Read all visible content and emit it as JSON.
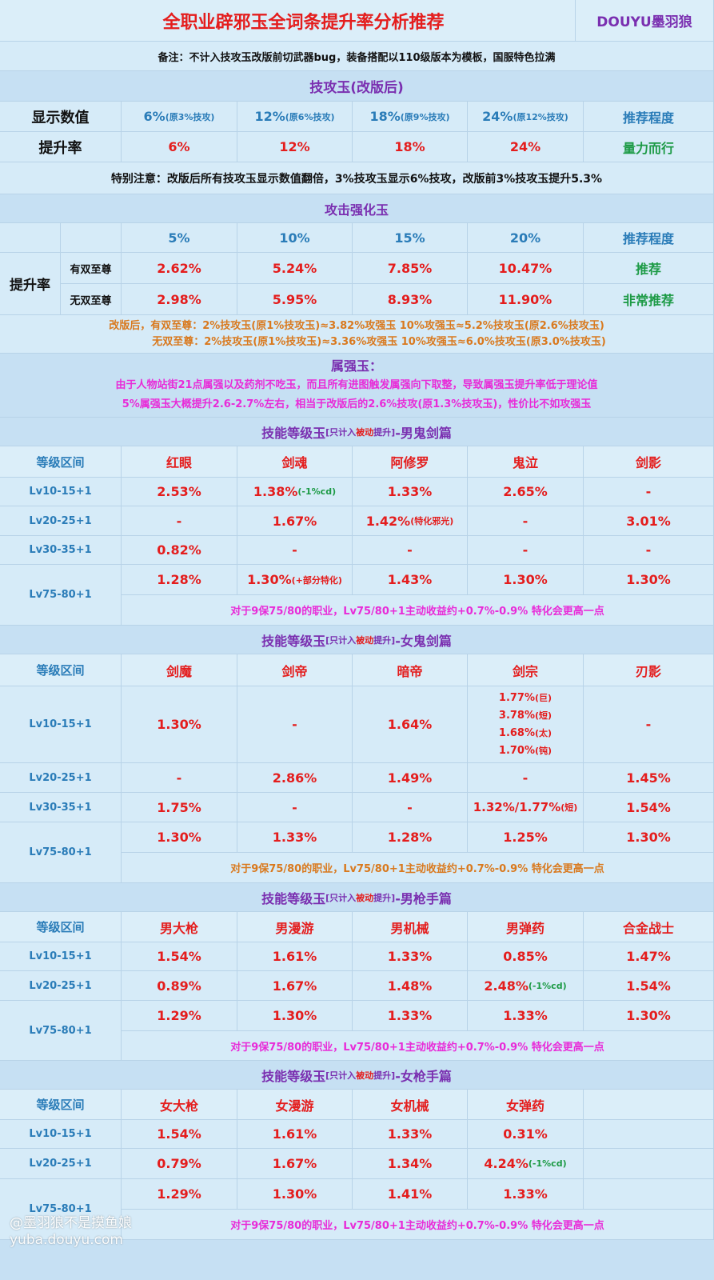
{
  "title": "全职业辟邪玉全词条提升率分析推荐",
  "brand": "DOUYU墨羽狼",
  "note": "备注：不计入技攻玉改版前切武器bug，装备搭配以110级版本为模板，国服特色拉满",
  "skill_atk": {
    "section": "技攻玉(改版后)",
    "display_label": "显示数值",
    "display": [
      "6%",
      "(原3%技攻)",
      "12%",
      "(原6%技攻)",
      "18%",
      "(原9%技攻)",
      "24%",
      "(原12%技攻)"
    ],
    "rec_header": "推荐程度",
    "rate_label": "提升率",
    "rates": [
      "6%",
      "12%",
      "18%",
      "24%"
    ],
    "rec": "量力而行",
    "notice": "特别注意：改版后所有技攻玉显示数值翻倍，3%技攻玉显示6%技攻，改版前3%技攻玉提升5.3%"
  },
  "atk_enh": {
    "section": "攻击强化玉",
    "cols": [
      "5%",
      "10%",
      "15%",
      "20%"
    ],
    "rec_header": "推荐程度",
    "rate_label": "提升率",
    "rows": [
      {
        "label": "有双至尊",
        "values": [
          "2.62%",
          "5.24%",
          "7.85%",
          "10.47%"
        ],
        "rec": "推荐"
      },
      {
        "label": "无双至尊",
        "values": [
          "2.98%",
          "5.95%",
          "8.93%",
          "11.90%"
        ],
        "rec": "非常推荐"
      }
    ],
    "note1": "改版后，有双至尊：2%技攻玉(原1%技攻玉)≈3.82%攻强玉      10%攻强玉≈5.2%技攻玉(原2.6%技攻玉)",
    "note2": "无双至尊：2%技攻玉(原1%技攻玉)≈3.36%攻强玉      10%攻强玉≈6.0%技攻玉(原3.0%技攻玉)"
  },
  "elem": {
    "section": "属强玉：",
    "line1": "由于人物站街21点属强以及药剂不吃玉，而且所有进图触发属强向下取整，导致属强玉提升率低于理论值",
    "line2": "5%属强玉大概提升2.6-2.7%左右，相当于改版后的2.6%技攻(原1.3%技攻玉)，性价比不如攻强玉"
  },
  "section_prefix": "技能等级玉",
  "section_bracket_open": "[只计入",
  "section_passive": "被动",
  "section_bracket_close": "提升]",
  "level_header": "等级区间",
  "footnote": "对于9保75/80的职业，Lv75/80+1主动收益约+0.7%-0.9% 特化会更高一点",
  "male_slayer": {
    "suffix": "-男鬼剑篇",
    "classes": [
      "红眼",
      "剑魂",
      "阿修罗",
      "鬼泣",
      "剑影"
    ],
    "lv": [
      "Lv10-15+1",
      "Lv20-25+1",
      "Lv30-35+1",
      "Lv75-80+1"
    ],
    "r1": [
      "2.53%",
      "1.38%",
      "(-1%cd)",
      "1.33%",
      "2.65%",
      "-"
    ],
    "r2": [
      "-",
      "1.67%",
      "1.42%",
      "(特化邪光)",
      "-",
      "3.01%"
    ],
    "r3": [
      "0.82%",
      "-",
      "-",
      "-",
      "-"
    ],
    "r4": [
      "1.28%",
      "1.30%",
      "(+部分特化)",
      "1.43%",
      "1.30%",
      "1.30%"
    ]
  },
  "female_slayer": {
    "suffix": "-女鬼剑篇",
    "classes": [
      "剑魔",
      "剑帝",
      "暗帝",
      "剑宗",
      "刃影"
    ],
    "lv": [
      "Lv10-15+1",
      "Lv20-25+1",
      "Lv30-35+1",
      "Lv75-80+1"
    ],
    "r1": [
      "1.30%",
      "-",
      "1.64%",
      "-"
    ],
    "r1_multi": [
      "1.77%",
      "(巨)",
      "3.78%",
      "(短)",
      "1.68%",
      "(太)",
      "1.70%",
      "(钝)"
    ],
    "r2": [
      "-",
      "2.86%",
      "1.49%",
      "-",
      "1.45%"
    ],
    "r3": [
      "1.75%",
      "-",
      "-",
      "1.32%/1.77%",
      "(短)",
      "1.54%"
    ],
    "r4": [
      "1.30%",
      "1.33%",
      "1.28%",
      "1.25%",
      "1.30%"
    ]
  },
  "male_gunner": {
    "suffix": "-男枪手篇",
    "classes": [
      "男大枪",
      "男漫游",
      "男机械",
      "男弹药",
      "合金战士"
    ],
    "lv": [
      "Lv10-15+1",
      "Lv20-25+1",
      "Lv75-80+1"
    ],
    "r1": [
      "1.54%",
      "1.61%",
      "1.33%",
      "0.85%",
      "1.47%"
    ],
    "r2": [
      "0.89%",
      "1.67%",
      "1.48%",
      "2.48%",
      "(-1%cd)",
      "1.54%"
    ],
    "r3": [
      "1.29%",
      "1.30%",
      "1.33%",
      "1.33%",
      "1.30%"
    ]
  },
  "female_gunner": {
    "suffix": "-女枪手篇",
    "classes": [
      "女大枪",
      "女漫游",
      "女机械",
      "女弹药",
      ""
    ],
    "lv": [
      "Lv10-15+1",
      "Lv20-25+1",
      "Lv75-80+1"
    ],
    "r1": [
      "1.54%",
      "1.61%",
      "1.33%",
      "0.31%",
      ""
    ],
    "r2": [
      "0.79%",
      "1.67%",
      "1.34%",
      "4.24%",
      "(-1%cd)",
      ""
    ],
    "r3": [
      "1.29%",
      "1.30%",
      "1.41%",
      "1.33%",
      ""
    ]
  },
  "watermark": [
    "@墨羽狼不是摸鱼娘",
    "yuba.douyu.com"
  ],
  "colors": {
    "bg": "#cfe6f7",
    "red": "#e41d1d",
    "blue": "#2a7cb8",
    "green": "#1c9a45",
    "purple": "#7a2fb0",
    "orange": "#d9791e",
    "pink": "#e82bd8"
  }
}
